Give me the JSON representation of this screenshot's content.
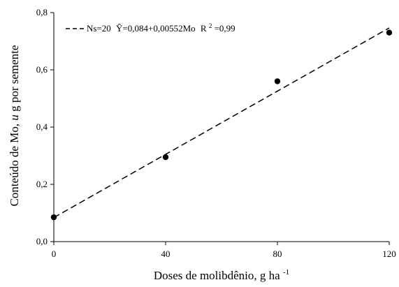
{
  "chart_data": {
    "type": "scatter",
    "xlabel": "Doses de molibdênio, g ha",
    "xlabel_sup": "-1",
    "ylabel_pre": "Conteúdo de Mo, ",
    "ylabel_unit": "u",
    "ylabel_post": "g por semente",
    "xlim": [
      0,
      120
    ],
    "ylim": [
      0,
      0.8
    ],
    "x_ticks": [
      0,
      40,
      80,
      120
    ],
    "x_tick_labels": [
      "0",
      "40",
      "80",
      "120"
    ],
    "y_ticks": [
      0,
      0.2,
      0.4,
      0.6,
      0.8
    ],
    "y_tick_labels": [
      "0,0",
      "0,2",
      "0,4",
      "0,6",
      "0,8"
    ],
    "grid": false,
    "legend_position": "top-left",
    "series": [
      {
        "name": "Ns=20",
        "x": [
          0,
          40,
          80,
          120
        ],
        "y": [
          0.085,
          0.295,
          0.56,
          0.73
        ]
      }
    ],
    "fit": {
      "type": "linear",
      "intercept": 0.084,
      "slope": 0.00552,
      "style": "dashed"
    },
    "legend": {
      "series_name": "Ns=20",
      "equation": "Ŷ=0,084+0,00552Mo",
      "r2_prefix": "R",
      "r2_sup": "2",
      "r2_value": "=0,99"
    }
  }
}
